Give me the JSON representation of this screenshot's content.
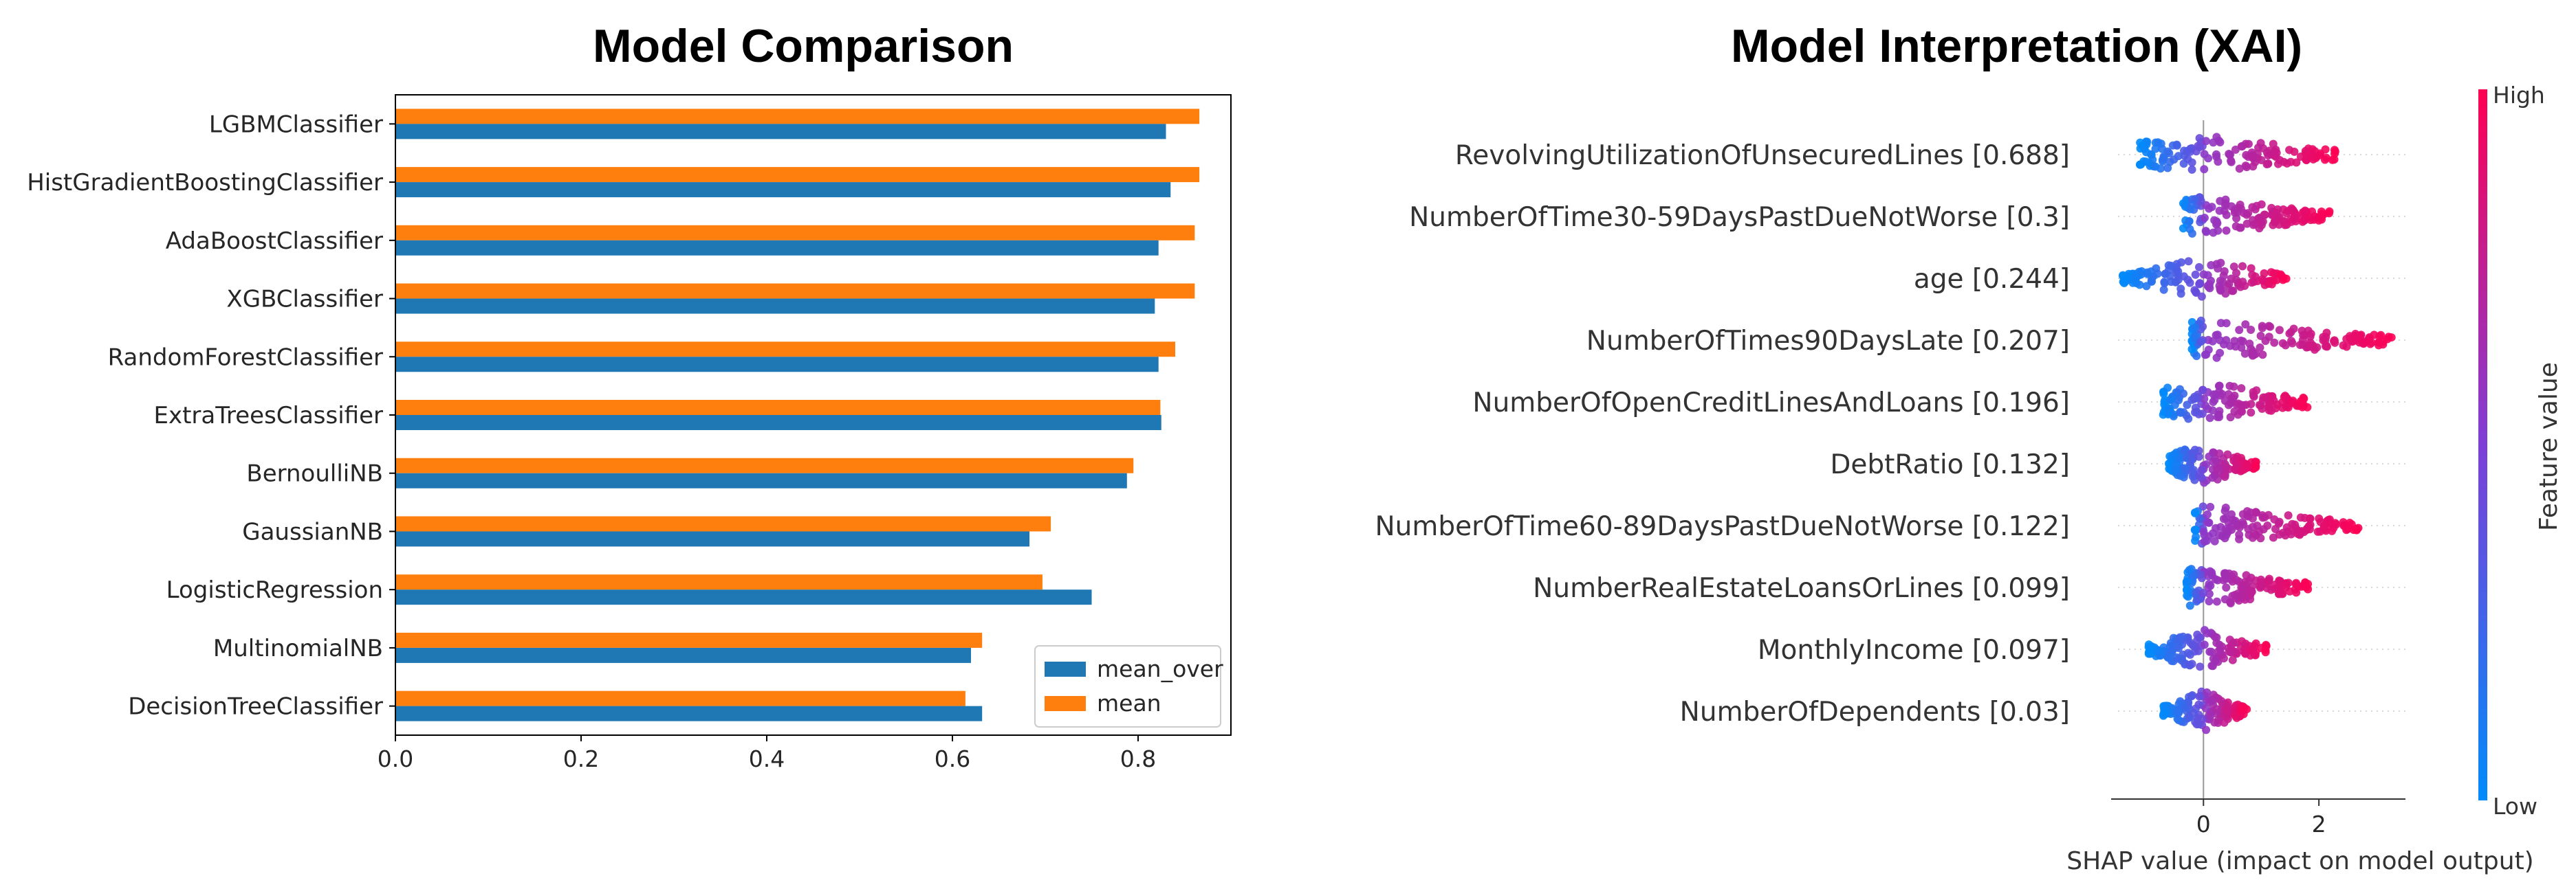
{
  "chart_data": [
    {
      "type": "bar",
      "orientation": "horizontal",
      "title": "Model Comparison",
      "categories": [
        "LGBMClassifier",
        "HistGradientBoostingClassifier",
        "AdaBoostClassifier",
        "XGBClassifier",
        "RandomForestClassifier",
        "ExtraTreesClassifier",
        "BernoulliNB",
        "GaussianNB",
        "LogisticRegression",
        "MultinomialNB",
        "DecisionTreeClassifier"
      ],
      "series": [
        {
          "name": "mean_over",
          "color": "#1f77b4",
          "values": [
            0.83,
            0.835,
            0.822,
            0.818,
            0.822,
            0.825,
            0.788,
            0.683,
            0.75,
            0.62,
            0.632
          ]
        },
        {
          "name": "mean",
          "color": "#ff7f0e",
          "values": [
            0.866,
            0.866,
            0.861,
            0.861,
            0.84,
            0.824,
            0.795,
            0.706,
            0.697,
            0.632,
            0.614
          ]
        }
      ],
      "xlim": [
        0,
        0.9
      ],
      "xticks": [
        0.0,
        0.2,
        0.4,
        0.6,
        0.8
      ],
      "xtick_labels": [
        "0.0",
        "0.2",
        "0.4",
        "0.6",
        "0.8"
      ],
      "legend_position": "lower-right",
      "grid": false
    },
    {
      "type": "scatter",
      "subtype": "shap-beeswarm",
      "title": "Model Interpretation (XAI)",
      "xlabel": "SHAP value (impact on model output)",
      "features": [
        {
          "label": "RevolvingUtilizationOfUnsecuredLines [0.688]",
          "min": -1.1,
          "max": 2.3
        },
        {
          "label": "NumberOfTime30-59DaysPastDueNotWorse [0.3]",
          "min": -0.35,
          "max": 2.2
        },
        {
          "label": "age [0.244]",
          "min": -1.4,
          "max": 1.45
        },
        {
          "label": "NumberOfTimes90DaysLate [0.207]",
          "min": -0.2,
          "max": 3.3
        },
        {
          "label": "NumberOfOpenCreditLinesAndLoans [0.196]",
          "min": -0.7,
          "max": 1.8
        },
        {
          "label": "DebtRatio [0.132]",
          "min": -0.6,
          "max": 0.95
        },
        {
          "label": "NumberOfTime60-89DaysPastDueNotWorse [0.122]",
          "min": -0.15,
          "max": 2.7
        },
        {
          "label": "NumberRealEstateLoansOrLines [0.099]",
          "min": -0.3,
          "max": 1.85
        },
        {
          "label": "MonthlyIncome [0.097]",
          "min": -0.95,
          "max": 1.1
        },
        {
          "label": "NumberOfDependents [0.03]",
          "min": -0.7,
          "max": 0.75
        }
      ],
      "xlim": [
        -1.6,
        3.5
      ],
      "xticks": [
        0,
        2
      ],
      "xtick_labels": [
        "0",
        "2"
      ],
      "colorbar": {
        "label": "Feature value",
        "high": "High",
        "low": "Low",
        "high_color": "#ff0052",
        "low_color": "#008bfb"
      }
    }
  ]
}
